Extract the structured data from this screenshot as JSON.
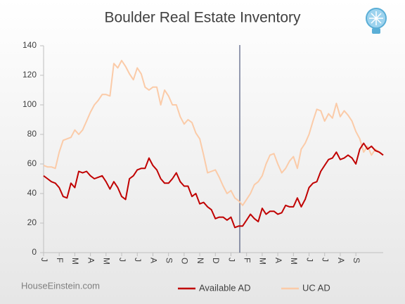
{
  "chart_data": {
    "type": "line",
    "title": "Boulder Real Estate Inventory",
    "footer": "HouseEinstein.com",
    "categories": [
      "J",
      null,
      null,
      null,
      "F",
      null,
      null,
      null,
      "M",
      null,
      null,
      null,
      "A",
      null,
      null,
      null,
      "M",
      null,
      null,
      null,
      "J",
      null,
      null,
      null,
      "J",
      null,
      null,
      null,
      "A",
      null,
      null,
      null,
      "S",
      null,
      null,
      null,
      "O",
      null,
      null,
      null,
      "N",
      null,
      null,
      null,
      "D",
      null,
      null,
      null,
      "J",
      null,
      null,
      null,
      "F",
      null,
      null,
      null,
      "M",
      null,
      null,
      null,
      "A",
      null,
      null,
      null,
      "M",
      null,
      null,
      null,
      "J",
      null,
      null,
      null,
      "J",
      null,
      null,
      null,
      "A",
      null,
      null,
      null,
      "S",
      null,
      null,
      null,
      null,
      null,
      null,
      null
    ],
    "series": [
      {
        "name": "Available AD",
        "color": "#c00000",
        "values": [
          52,
          50,
          48,
          47,
          44,
          38,
          37,
          47,
          44,
          55,
          54,
          55,
          52,
          50,
          51,
          52,
          48,
          43,
          48,
          44,
          38,
          36,
          50,
          52,
          56,
          57,
          57,
          64,
          59,
          56,
          50,
          47,
          47,
          50,
          54,
          48,
          45,
          45,
          38,
          40,
          33,
          34,
          31,
          29,
          23,
          24,
          24,
          22,
          24,
          17,
          18,
          18,
          22,
          26,
          23,
          21,
          30,
          26,
          28,
          28,
          26,
          27,
          32,
          31,
          31,
          37,
          31,
          36,
          44,
          47,
          48,
          55,
          59,
          63,
          64,
          68,
          63,
          64,
          66,
          64,
          60,
          70,
          74,
          70,
          72,
          69,
          68,
          66
        ]
      },
      {
        "name": "UC AD",
        "color": "#fbcba8",
        "values": [
          59,
          58,
          58,
          57,
          68,
          76,
          77,
          78,
          83,
          80,
          83,
          89,
          95,
          100,
          103,
          107,
          107,
          106,
          128,
          125,
          130,
          126,
          121,
          117,
          125,
          121,
          112,
          110,
          112,
          112,
          100,
          110,
          106,
          100,
          100,
          92,
          87,
          90,
          88,
          81,
          77,
          66,
          54,
          55,
          56,
          51,
          45,
          40,
          42,
          37,
          35,
          32,
          36,
          40,
          46,
          48,
          52,
          60,
          66,
          67,
          60,
          54,
          57,
          62,
          65,
          57,
          70,
          74,
          80,
          89,
          97,
          96,
          89,
          94,
          91,
          101,
          92,
          96,
          93,
          89,
          82,
          77,
          68,
          72,
          66,
          70,
          68,
          66
        ]
      }
    ],
    "ylim": [
      0,
      140
    ],
    "yticks": [
      0,
      20,
      40,
      60,
      80,
      100,
      120,
      140
    ],
    "grid": false
  }
}
